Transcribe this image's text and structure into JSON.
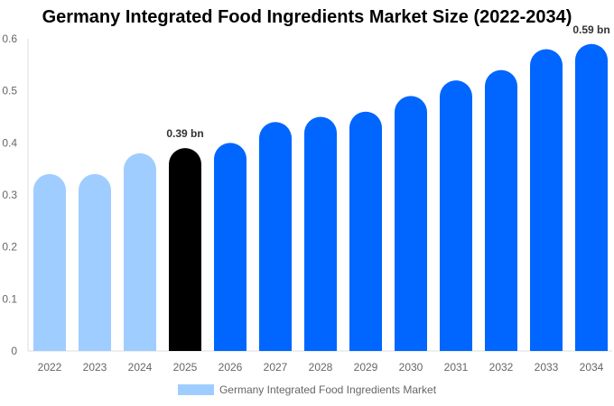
{
  "chart_data": {
    "type": "bar",
    "title": "Germany Integrated Food Ingredients Market Size (2022-2034)",
    "categories": [
      "2022",
      "2023",
      "2024",
      "2025",
      "2026",
      "2027",
      "2028",
      "2029",
      "2030",
      "2031",
      "2032",
      "2033",
      "2034"
    ],
    "series": [
      {
        "name": "Germany Integrated Food Ingredients Market",
        "values": [
          0.34,
          0.34,
          0.38,
          0.39,
          0.4,
          0.44,
          0.45,
          0.46,
          0.49,
          0.52,
          0.54,
          0.58,
          0.59
        ]
      }
    ],
    "data_labels": [
      {
        "category": "2025",
        "text": "0.39 bn"
      },
      {
        "category": "2034",
        "text": "0.59 bn"
      }
    ],
    "ylim": [
      0,
      0.6
    ],
    "yticks": [
      "0",
      "0.1",
      "0.2",
      "0.3",
      "0.4",
      "0.5",
      "0.6"
    ],
    "grid": false,
    "legend_position": "bottom",
    "colors": {
      "historical": "#a0cdff",
      "current": "#000000",
      "forecast": "#0066ff"
    },
    "bar_color_groups": [
      "historical",
      "historical",
      "historical",
      "current",
      "forecast",
      "forecast",
      "forecast",
      "forecast",
      "forecast",
      "forecast",
      "forecast",
      "forecast",
      "forecast"
    ]
  }
}
